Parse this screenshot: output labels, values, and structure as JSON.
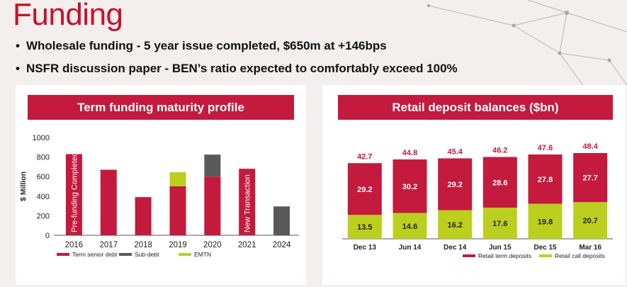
{
  "page": {
    "title": "Funding",
    "bullets": [
      "Wholesale funding - 5 year issue completed, $650m at +146bps",
      "NSFR discussion paper - BEN’s ratio expected to comfortably exceed 100%"
    ]
  },
  "colors": {
    "term": "#c41a3d",
    "sub": "#58595b",
    "emtn": "#bccf1e",
    "banner": "#c41a3d"
  },
  "chart_data": [
    {
      "type": "bar",
      "stacked": true,
      "title": "Term funding maturity profile",
      "ylabel": "$ Million",
      "ylim": [
        0,
        1000
      ],
      "yticks": [
        0,
        200,
        400,
        600,
        800,
        1000
      ],
      "categories": [
        "2016",
        "2017",
        "2018",
        "2019",
        "2020",
        "2021",
        "2024"
      ],
      "series": [
        {
          "name": "Term senior debt",
          "values": [
            830,
            670,
            390,
            500,
            600,
            680,
            0
          ]
        },
        {
          "name": "Sub-debt",
          "values": [
            0,
            0,
            0,
            0,
            225,
            0,
            295
          ]
        },
        {
          "name": "EMTN",
          "values": [
            0,
            0,
            0,
            145,
            0,
            0,
            0
          ]
        }
      ],
      "annotations": [
        {
          "category": "2016",
          "text": "Pre-funding Completed"
        },
        {
          "category": "2021",
          "text": "New Transaction"
        }
      ],
      "legend": "bottom"
    },
    {
      "type": "bar",
      "stacked": true,
      "title": "Retail deposit balances ($bn)",
      "categories": [
        "Dec 13",
        "Jun 14",
        "Dec 14",
        "Jun 15",
        "Dec 15",
        "Mar 16"
      ],
      "totals": [
        "42.7",
        "44.8",
        "45.4",
        "46.2",
        "47.6",
        "48.4"
      ],
      "series": [
        {
          "name": "Retail call deposits",
          "values": [
            13.5,
            14.6,
            16.2,
            17.6,
            19.8,
            20.7
          ],
          "labels": [
            "13.5",
            "14.6",
            "16.2",
            "17.6",
            "19.8",
            "20.7"
          ]
        },
        {
          "name": "Retail term deposits",
          "values": [
            29.2,
            30.2,
            29.2,
            28.6,
            27.8,
            27.7
          ],
          "labels": [
            "29.2",
            "30.2",
            "29.2",
            "28.6",
            "27.8",
            "27.7"
          ]
        }
      ],
      "legend_order": [
        "Retail term deposits",
        "Retail call deposits"
      ],
      "legend": "bottom"
    }
  ]
}
